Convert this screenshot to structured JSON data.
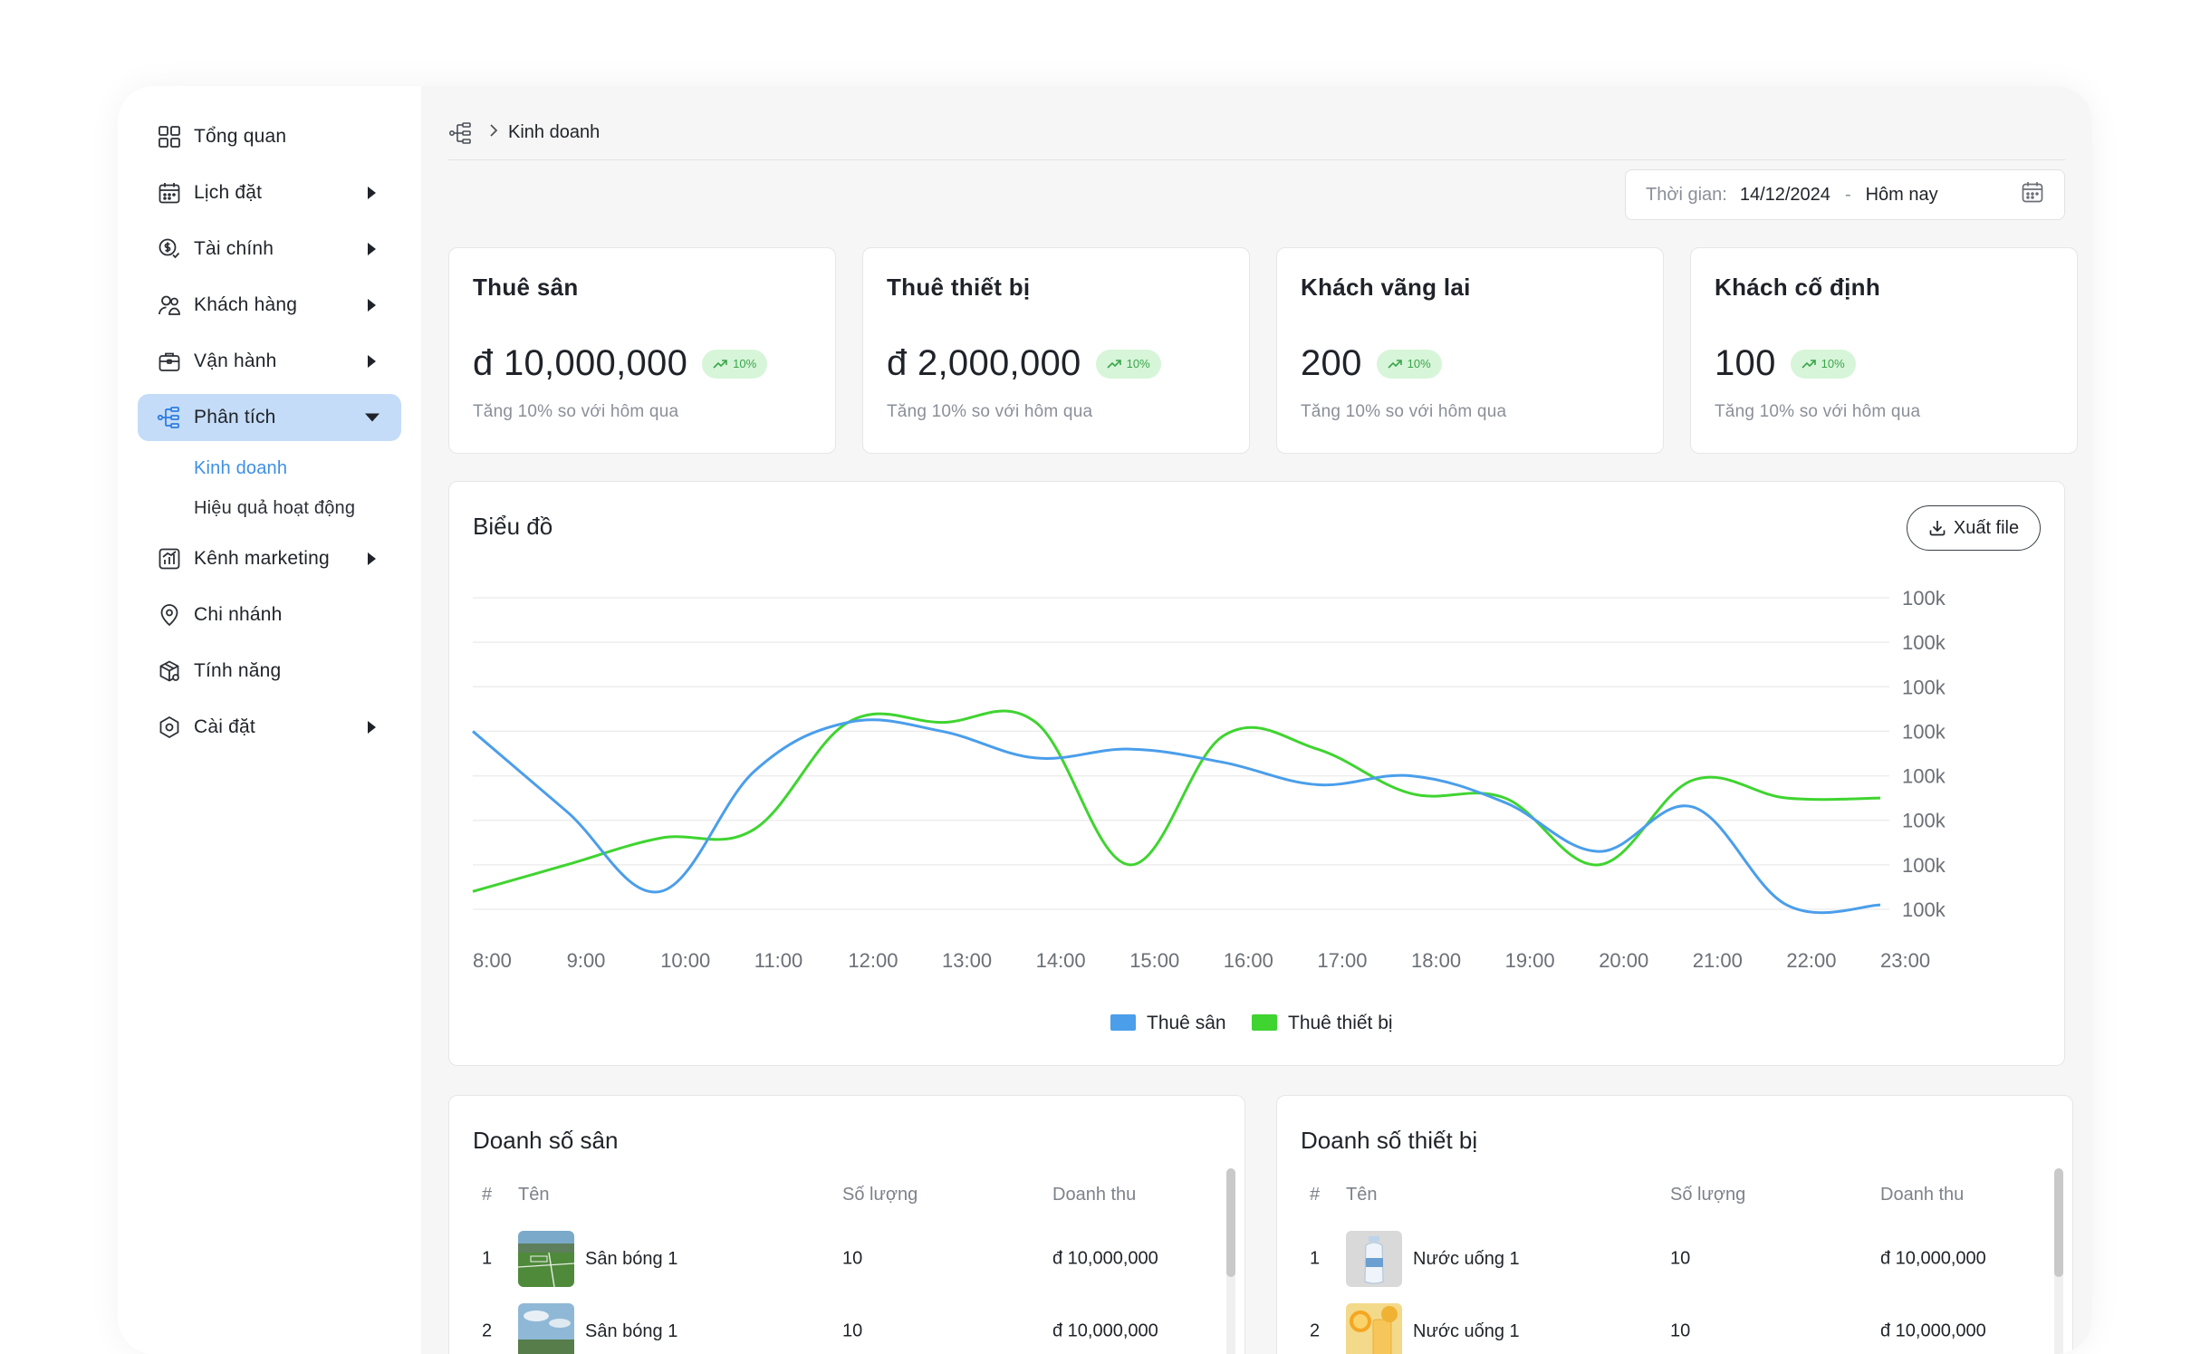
{
  "sidebar": {
    "items": [
      {
        "label": "Tổng quan",
        "icon": "grid-icon",
        "has_caret": false
      },
      {
        "label": "Lịch đặt",
        "icon": "calendar-icon",
        "has_caret": true
      },
      {
        "label": "Tài chính",
        "icon": "dollar-icon",
        "has_caret": true
      },
      {
        "label": "Khách hàng",
        "icon": "users-icon",
        "has_caret": true
      },
      {
        "label": "Vận hành",
        "icon": "briefcase-icon",
        "has_caret": true
      },
      {
        "label": "Phân tích",
        "icon": "analytics-tree-icon",
        "has_caret": true,
        "active": true
      },
      {
        "label": "Kênh marketing",
        "icon": "chart-icon",
        "has_caret": true
      },
      {
        "label": "Chi nhánh",
        "icon": "location-icon",
        "has_caret": false
      },
      {
        "label": "Tính năng",
        "icon": "package-icon",
        "has_caret": false
      },
      {
        "label": "Cài đặt",
        "icon": "settings-hex-icon",
        "has_caret": true
      }
    ],
    "sub_items": [
      {
        "label": "Kinh doanh",
        "active": true
      },
      {
        "label": "Hiệu quả hoạt động",
        "active": false
      }
    ]
  },
  "breadcrumb": {
    "icon": "analytics-tree-icon",
    "current": "Kinh doanh"
  },
  "date_filter": {
    "label": "Thời gian:",
    "from": "14/12/2024",
    "separator": "-",
    "to": "Hôm nay",
    "icon": "calendar-icon"
  },
  "stats": [
    {
      "title": "Thuê sân",
      "value": "đ 10,000,000",
      "badge": "10%",
      "note": "Tăng 10% so với hôm qua"
    },
    {
      "title": "Thuê thiết bị",
      "value": "đ 2,000,000",
      "badge": "10%",
      "note": "Tăng 10% so với hôm qua"
    },
    {
      "title": "Khách vãng lai",
      "value": "200",
      "badge": "10%",
      "note": "Tăng 10% so với hôm qua"
    },
    {
      "title": "Khách cố định",
      "value": "100",
      "badge": "10%",
      "note": "Tăng 10% so với hôm qua"
    }
  ],
  "chart_card": {
    "title": "Biểu đồ",
    "export_label": "Xuất file"
  },
  "chart_data": {
    "type": "line",
    "title": "Biểu đồ",
    "x": [
      "8:00",
      "9:00",
      "10:00",
      "11:00",
      "12:00",
      "13:00",
      "14:00",
      "15:00",
      "16:00",
      "17:00",
      "18:00",
      "19:00",
      "20:00",
      "21:00",
      "22:00",
      "23:00"
    ],
    "y_tick_labels": [
      "100k",
      "100k",
      "100k",
      "100k",
      "100k",
      "100k",
      "100k",
      "100k"
    ],
    "ylim": [
      0,
      7
    ],
    "grid": true,
    "legend_position": "bottom-center",
    "series": [
      {
        "name": "Thuê sân",
        "color": "#4a9eea",
        "values": [
          4.0,
          2.2,
          0.4,
          3.1,
          4.2,
          4.0,
          3.4,
          3.6,
          3.3,
          2.8,
          3.0,
          2.4,
          1.3,
          2.3,
          0.1,
          0.1
        ]
      },
      {
        "name": "Thuê thiết bị",
        "color": "#3fd430",
        "values": [
          0.4,
          1.0,
          1.6,
          1.8,
          4.2,
          4.2,
          4.2,
          1.0,
          3.9,
          3.6,
          2.6,
          2.5,
          1.0,
          2.9,
          2.5,
          2.5
        ]
      }
    ]
  },
  "tables": [
    {
      "title": "Doanh số sân",
      "headers": [
        "#",
        "Tên",
        "Số lượng",
        "Doanh thu"
      ],
      "rows": [
        {
          "idx": "1",
          "name": "Sân bóng 1",
          "qty": "10",
          "revenue": "đ 10,000,000",
          "thumb": "field-photo"
        },
        {
          "idx": "2",
          "name": "Sân bóng 1",
          "qty": "10",
          "revenue": "đ 10,000,000",
          "thumb": "field-photo-sky"
        }
      ]
    },
    {
      "title": "Doanh số thiết bị",
      "headers": [
        "#",
        "Tên",
        "Số lượng",
        "Doanh thu"
      ],
      "rows": [
        {
          "idx": "1",
          "name": "Nước uống 1",
          "qty": "10",
          "revenue": "đ 10,000,000",
          "thumb": "water-bottle-photo"
        },
        {
          "idx": "2",
          "name": "Nước uống 1",
          "qty": "10",
          "revenue": "đ 10,000,000",
          "thumb": "orange-juice-photo"
        }
      ]
    }
  ]
}
